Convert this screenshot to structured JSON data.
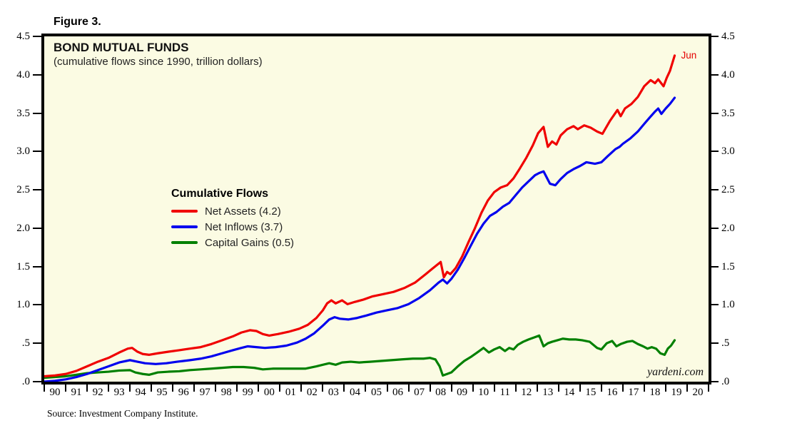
{
  "figure_label": "Figure 3.",
  "chart": {
    "title": "BOND MUTUAL FUNDS",
    "subtitle": "(cumulative flows since 1990, trillion dollars)",
    "legend_title": "Cumulative Flows",
    "annotation": "Jun",
    "watermark": "yardeni.com",
    "source": "Source: Investment Company Institute.",
    "background_color": "#fbfbe3",
    "border_color": "#000000"
  },
  "chart_data": {
    "type": "line",
    "title": "BOND MUTUAL FUNDS",
    "subtitle": "(cumulative flows since 1990, trillion dollars)",
    "x_axis": {
      "range": [
        1990,
        2021
      ],
      "tick_labels": [
        "90",
        "91",
        "92",
        "93",
        "94",
        "95",
        "96",
        "97",
        "98",
        "99",
        "00",
        "01",
        "02",
        "03",
        "04",
        "05",
        "06",
        "07",
        "08",
        "09",
        "10",
        "11",
        "12",
        "13",
        "14",
        "15",
        "16",
        "17",
        "18",
        "19",
        "20"
      ]
    },
    "y_axis": {
      "range": [
        0,
        4.5
      ],
      "tick_labels": [
        "4.5",
        "4.0",
        "3.5",
        "3.0",
        "2.5",
        "2.0",
        "1.5",
        "1.0",
        ".5",
        ".0"
      ],
      "dual_sided": true,
      "grid": false
    },
    "legend_position": "center-left",
    "last_point_label": "Jun",
    "series": [
      {
        "name": "Capital Gains (0.5)",
        "color": "#008000",
        "points": [
          [
            1990,
            0.05
          ],
          [
            1990.5,
            0.06
          ],
          [
            1991,
            0.07
          ],
          [
            1991.5,
            0.09
          ],
          [
            1992,
            0.11
          ],
          [
            1992.5,
            0.12
          ],
          [
            1993,
            0.13
          ],
          [
            1993.5,
            0.145
          ],
          [
            1994,
            0.15
          ],
          [
            1994.25,
            0.12
          ],
          [
            1994.6,
            0.1
          ],
          [
            1994.9,
            0.09
          ],
          [
            1995.3,
            0.12
          ],
          [
            1995.8,
            0.13
          ],
          [
            1996.3,
            0.135
          ],
          [
            1996.8,
            0.15
          ],
          [
            1997.3,
            0.16
          ],
          [
            1997.8,
            0.17
          ],
          [
            1998.3,
            0.18
          ],
          [
            1998.8,
            0.19
          ],
          [
            1999.3,
            0.19
          ],
          [
            1999.8,
            0.18
          ],
          [
            2000.2,
            0.16
          ],
          [
            2000.7,
            0.17
          ],
          [
            2001.2,
            0.17
          ],
          [
            2001.7,
            0.17
          ],
          [
            2002.2,
            0.17
          ],
          [
            2002.7,
            0.2
          ],
          [
            2003.0,
            0.22
          ],
          [
            2003.3,
            0.24
          ],
          [
            2003.6,
            0.22
          ],
          [
            2003.9,
            0.25
          ],
          [
            2004.3,
            0.26
          ],
          [
            2004.7,
            0.25
          ],
          [
            2005.2,
            0.26
          ],
          [
            2005.7,
            0.27
          ],
          [
            2006.2,
            0.28
          ],
          [
            2006.7,
            0.29
          ],
          [
            2007.2,
            0.3
          ],
          [
            2007.7,
            0.3
          ],
          [
            2008.0,
            0.31
          ],
          [
            2008.25,
            0.29
          ],
          [
            2008.45,
            0.2
          ],
          [
            2008.6,
            0.08
          ],
          [
            2008.8,
            0.1
          ],
          [
            2009.0,
            0.12
          ],
          [
            2009.3,
            0.2
          ],
          [
            2009.6,
            0.27
          ],
          [
            2009.9,
            0.32
          ],
          [
            2010.2,
            0.38
          ],
          [
            2010.5,
            0.44
          ],
          [
            2010.75,
            0.38
          ],
          [
            2011.0,
            0.42
          ],
          [
            2011.25,
            0.45
          ],
          [
            2011.5,
            0.4
          ],
          [
            2011.7,
            0.44
          ],
          [
            2011.9,
            0.42
          ],
          [
            2012.1,
            0.48
          ],
          [
            2012.35,
            0.52
          ],
          [
            2012.6,
            0.55
          ],
          [
            2012.9,
            0.58
          ],
          [
            2013.1,
            0.6
          ],
          [
            2013.3,
            0.46
          ],
          [
            2013.5,
            0.5
          ],
          [
            2013.7,
            0.52
          ],
          [
            2013.95,
            0.54
          ],
          [
            2014.2,
            0.56
          ],
          [
            2014.5,
            0.55
          ],
          [
            2014.8,
            0.55
          ],
          [
            2015.1,
            0.54
          ],
          [
            2015.45,
            0.52
          ],
          [
            2015.8,
            0.44
          ],
          [
            2016.0,
            0.42
          ],
          [
            2016.25,
            0.5
          ],
          [
            2016.5,
            0.53
          ],
          [
            2016.7,
            0.46
          ],
          [
            2016.9,
            0.49
          ],
          [
            2017.2,
            0.52
          ],
          [
            2017.45,
            0.53
          ],
          [
            2017.7,
            0.49
          ],
          [
            2017.95,
            0.46
          ],
          [
            2018.15,
            0.43
          ],
          [
            2018.35,
            0.45
          ],
          [
            2018.55,
            0.43
          ],
          [
            2018.75,
            0.37
          ],
          [
            2018.95,
            0.35
          ],
          [
            2019.1,
            0.43
          ],
          [
            2019.25,
            0.47
          ],
          [
            2019.42,
            0.54
          ]
        ]
      },
      {
        "name": "Net Inflows (3.7)",
        "color": "#0000ee",
        "points": [
          [
            1990,
            0.0
          ],
          [
            1990.5,
            0.01
          ],
          [
            1991,
            0.03
          ],
          [
            1991.5,
            0.06
          ],
          [
            1992,
            0.1
          ],
          [
            1992.5,
            0.15
          ],
          [
            1993,
            0.2
          ],
          [
            1993.5,
            0.25
          ],
          [
            1994,
            0.28
          ],
          [
            1994.35,
            0.26
          ],
          [
            1994.7,
            0.24
          ],
          [
            1995.2,
            0.23
          ],
          [
            1995.7,
            0.24
          ],
          [
            1996.2,
            0.26
          ],
          [
            1996.8,
            0.28
          ],
          [
            1997.3,
            0.3
          ],
          [
            1997.8,
            0.33
          ],
          [
            1998.3,
            0.37
          ],
          [
            1998.8,
            0.41
          ],
          [
            1999.2,
            0.44
          ],
          [
            1999.5,
            0.46
          ],
          [
            1999.9,
            0.45
          ],
          [
            2000.3,
            0.44
          ],
          [
            2000.8,
            0.45
          ],
          [
            2001.3,
            0.47
          ],
          [
            2001.8,
            0.51
          ],
          [
            2002.2,
            0.56
          ],
          [
            2002.6,
            0.63
          ],
          [
            2003.0,
            0.73
          ],
          [
            2003.3,
            0.81
          ],
          [
            2003.55,
            0.84
          ],
          [
            2003.8,
            0.82
          ],
          [
            2004.2,
            0.81
          ],
          [
            2004.6,
            0.83
          ],
          [
            2005.0,
            0.86
          ],
          [
            2005.5,
            0.9
          ],
          [
            2006.0,
            0.93
          ],
          [
            2006.5,
            0.96
          ],
          [
            2007.0,
            1.01
          ],
          [
            2007.5,
            1.09
          ],
          [
            2008.0,
            1.19
          ],
          [
            2008.4,
            1.29
          ],
          [
            2008.6,
            1.33
          ],
          [
            2008.8,
            1.28
          ],
          [
            2009.0,
            1.34
          ],
          [
            2009.3,
            1.46
          ],
          [
            2009.6,
            1.61
          ],
          [
            2009.9,
            1.77
          ],
          [
            2010.2,
            1.93
          ],
          [
            2010.5,
            2.06
          ],
          [
            2010.8,
            2.16
          ],
          [
            2011.1,
            2.21
          ],
          [
            2011.4,
            2.28
          ],
          [
            2011.7,
            2.33
          ],
          [
            2012.0,
            2.43
          ],
          [
            2012.3,
            2.53
          ],
          [
            2012.6,
            2.61
          ],
          [
            2012.9,
            2.69
          ],
          [
            2013.1,
            2.72
          ],
          [
            2013.3,
            2.74
          ],
          [
            2013.6,
            2.58
          ],
          [
            2013.85,
            2.56
          ],
          [
            2014.1,
            2.64
          ],
          [
            2014.4,
            2.72
          ],
          [
            2014.7,
            2.77
          ],
          [
            2015.0,
            2.81
          ],
          [
            2015.3,
            2.86
          ],
          [
            2015.7,
            2.84
          ],
          [
            2016.0,
            2.86
          ],
          [
            2016.3,
            2.94
          ],
          [
            2016.65,
            3.03
          ],
          [
            2016.85,
            3.06
          ],
          [
            2017.0,
            3.1
          ],
          [
            2017.35,
            3.17
          ],
          [
            2017.7,
            3.26
          ],
          [
            2018.0,
            3.36
          ],
          [
            2018.25,
            3.44
          ],
          [
            2018.5,
            3.52
          ],
          [
            2018.65,
            3.56
          ],
          [
            2018.8,
            3.49
          ],
          [
            2019.0,
            3.56
          ],
          [
            2019.2,
            3.62
          ],
          [
            2019.42,
            3.7
          ]
        ]
      },
      {
        "name": "Net Assets (4.2)",
        "color": "#f00000",
        "points": [
          [
            1990,
            0.07
          ],
          [
            1990.5,
            0.08
          ],
          [
            1991,
            0.1
          ],
          [
            1991.5,
            0.14
          ],
          [
            1992,
            0.2
          ],
          [
            1992.5,
            0.26
          ],
          [
            1993,
            0.31
          ],
          [
            1993.5,
            0.38
          ],
          [
            1993.9,
            0.43
          ],
          [
            1994.1,
            0.44
          ],
          [
            1994.35,
            0.39
          ],
          [
            1994.6,
            0.36
          ],
          [
            1994.9,
            0.35
          ],
          [
            1995.3,
            0.37
          ],
          [
            1995.8,
            0.39
          ],
          [
            1996.3,
            0.41
          ],
          [
            1996.8,
            0.43
          ],
          [
            1997.3,
            0.45
          ],
          [
            1997.8,
            0.49
          ],
          [
            1998.3,
            0.54
          ],
          [
            1998.8,
            0.59
          ],
          [
            1999.2,
            0.64
          ],
          [
            1999.6,
            0.67
          ],
          [
            1999.9,
            0.66
          ],
          [
            2000.2,
            0.62
          ],
          [
            2000.5,
            0.6
          ],
          [
            2000.9,
            0.62
          ],
          [
            2001.4,
            0.65
          ],
          [
            2001.9,
            0.69
          ],
          [
            2002.3,
            0.74
          ],
          [
            2002.7,
            0.83
          ],
          [
            2003.0,
            0.93
          ],
          [
            2003.2,
            1.02
          ],
          [
            2003.4,
            1.06
          ],
          [
            2003.6,
            1.02
          ],
          [
            2003.9,
            1.06
          ],
          [
            2004.15,
            1.01
          ],
          [
            2004.5,
            1.04
          ],
          [
            2004.9,
            1.07
          ],
          [
            2005.3,
            1.11
          ],
          [
            2005.8,
            1.14
          ],
          [
            2006.3,
            1.17
          ],
          [
            2006.8,
            1.22
          ],
          [
            2007.3,
            1.29
          ],
          [
            2007.8,
            1.4
          ],
          [
            2008.1,
            1.47
          ],
          [
            2008.5,
            1.56
          ],
          [
            2008.65,
            1.36
          ],
          [
            2008.8,
            1.43
          ],
          [
            2008.95,
            1.4
          ],
          [
            2009.2,
            1.48
          ],
          [
            2009.5,
            1.63
          ],
          [
            2009.8,
            1.82
          ],
          [
            2010.1,
            2.0
          ],
          [
            2010.4,
            2.2
          ],
          [
            2010.7,
            2.36
          ],
          [
            2011.0,
            2.47
          ],
          [
            2011.3,
            2.53
          ],
          [
            2011.6,
            2.56
          ],
          [
            2011.9,
            2.65
          ],
          [
            2012.2,
            2.78
          ],
          [
            2012.5,
            2.92
          ],
          [
            2012.8,
            3.08
          ],
          [
            2013.05,
            3.24
          ],
          [
            2013.3,
            3.32
          ],
          [
            2013.5,
            3.06
          ],
          [
            2013.7,
            3.13
          ],
          [
            2013.9,
            3.09
          ],
          [
            2014.1,
            3.21
          ],
          [
            2014.4,
            3.29
          ],
          [
            2014.7,
            3.33
          ],
          [
            2014.9,
            3.29
          ],
          [
            2015.2,
            3.34
          ],
          [
            2015.5,
            3.31
          ],
          [
            2015.8,
            3.26
          ],
          [
            2016.05,
            3.23
          ],
          [
            2016.4,
            3.4
          ],
          [
            2016.75,
            3.54
          ],
          [
            2016.9,
            3.46
          ],
          [
            2017.1,
            3.56
          ],
          [
            2017.4,
            3.62
          ],
          [
            2017.7,
            3.71
          ],
          [
            2018.0,
            3.85
          ],
          [
            2018.3,
            3.93
          ],
          [
            2018.5,
            3.89
          ],
          [
            2018.65,
            3.94
          ],
          [
            2018.9,
            3.85
          ],
          [
            2019.05,
            3.96
          ],
          [
            2019.2,
            4.05
          ],
          [
            2019.42,
            4.25
          ]
        ]
      }
    ]
  }
}
